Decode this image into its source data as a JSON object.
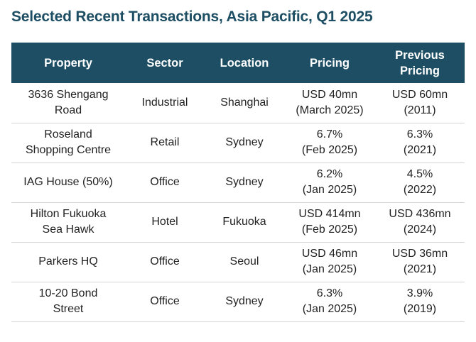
{
  "title": "Selected Recent Transactions, Asia Pacific, Q1 2025",
  "colors": {
    "title": "#1d4e63",
    "header_background": "#1d4e63",
    "header_text": "#ffffff",
    "row_divider": "#d6d6d6"
  },
  "table": {
    "headers": {
      "property": "Property",
      "sector": "Sector",
      "location": "Location",
      "pricing": "Pricing",
      "previous_pricing_line1": "Previous",
      "previous_pricing_line2": "Pricing"
    },
    "rows": [
      {
        "property": [
          "3636 Shengang",
          "Road"
        ],
        "sector": "Industrial",
        "location": "Shanghai",
        "pricing": [
          "USD 40mn",
          "(March 2025)"
        ],
        "previous_pricing": [
          "USD 60mn",
          "(2011)"
        ]
      },
      {
        "property": [
          "Roseland",
          "Shopping Centre"
        ],
        "sector": "Retail",
        "location": "Sydney",
        "pricing": [
          "6.7%",
          "(Feb 2025)"
        ],
        "previous_pricing": [
          "6.3%",
          "(2021)"
        ]
      },
      {
        "property": [
          "IAG House (50%)"
        ],
        "sector": "Office",
        "location": "Sydney",
        "pricing": [
          "6.2%",
          "(Jan 2025)"
        ],
        "previous_pricing": [
          "4.5%",
          "(2022)"
        ]
      },
      {
        "property": [
          "Hilton Fukuoka",
          "Sea Hawk"
        ],
        "sector": "Hotel",
        "location": "Fukuoka",
        "pricing": [
          "USD 414mn",
          "(Feb 2025)"
        ],
        "previous_pricing": [
          "USD 436mn",
          "(2024)"
        ]
      },
      {
        "property": [
          "Parkers HQ"
        ],
        "sector": "Office",
        "location": "Seoul",
        "pricing": [
          "USD 46mn",
          "(Jan 2025)"
        ],
        "previous_pricing": [
          "USD 36mn",
          "(2021)"
        ]
      },
      {
        "property": [
          "10-20 Bond",
          "Street"
        ],
        "sector": "Office",
        "location": "Sydney",
        "pricing": [
          "6.3%",
          "(Jan 2025)"
        ],
        "previous_pricing": [
          "3.9%",
          "(2019)"
        ]
      }
    ]
  }
}
